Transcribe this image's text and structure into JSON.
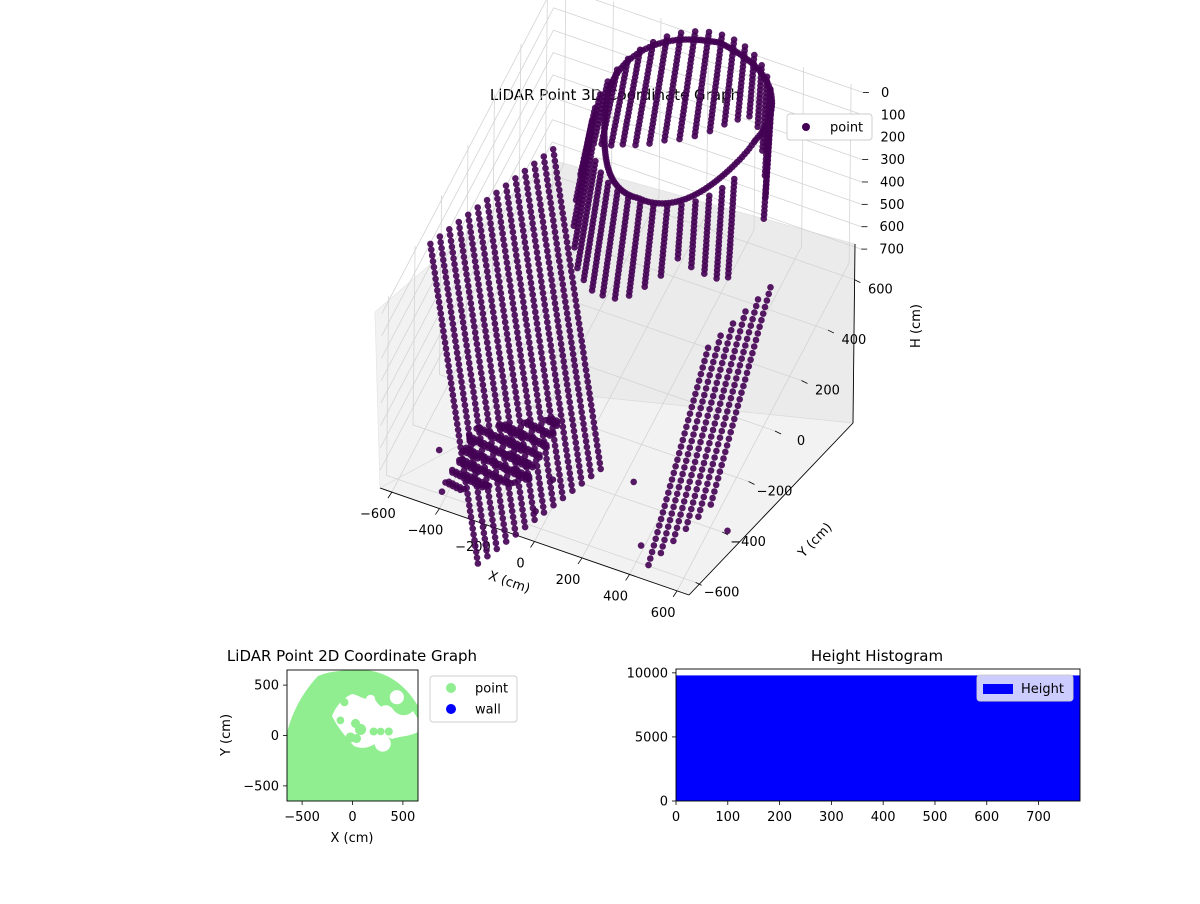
{
  "chart_data": [
    {
      "type": "scatter3d",
      "title": "LiDAR Point 3D Coordinate Graph",
      "xlabel": "X (cm)",
      "ylabel": "Y (cm)",
      "zlabel": "H (cm)",
      "xticks": [
        -600,
        -400,
        -200,
        0,
        200,
        400,
        600
      ],
      "yticks": [
        -600,
        -400,
        -200,
        0,
        200,
        400,
        600
      ],
      "zticks": [
        0,
        100,
        200,
        300,
        400,
        500,
        600,
        700
      ],
      "xlim": [
        -650,
        650
      ],
      "ylim": [
        -650,
        650
      ],
      "zlim": [
        -20,
        780
      ],
      "z_inverted": true,
      "legend": [
        "point"
      ],
      "legend_position": "top-right",
      "grid": true,
      "colors": {
        "point": "#440154"
      },
      "series": [
        {
          "name": "point",
          "description_points": [
            [
              -620,
              -150,
              200
            ],
            [
              -620,
              -150,
              700
            ],
            [
              -550,
              -350,
              150
            ],
            [
              -550,
              -350,
              700
            ],
            [
              -450,
              -500,
              100
            ],
            [
              -450,
              -500,
              650
            ],
            [
              -300,
              -600,
              200
            ],
            [
              -300,
              -600,
              700
            ],
            [
              -100,
              -620,
              250
            ],
            [
              -100,
              -620,
              720
            ],
            [
              100,
              -600,
              300
            ],
            [
              300,
              -500,
              350
            ],
            [
              450,
              -350,
              400
            ],
            [
              550,
              -150,
              300
            ],
            [
              600,
              0,
              250
            ],
            [
              600,
              200,
              200
            ],
            [
              500,
              400,
              150
            ],
            [
              300,
              550,
              50
            ],
            [
              100,
              600,
              30
            ],
            [
              -100,
              600,
              20
            ],
            [
              -300,
              550,
              30
            ],
            [
              -450,
              450,
              60
            ],
            [
              -550,
              300,
              100
            ],
            [
              -600,
              100,
              150
            ],
            [
              250,
              -350,
              760
            ],
            [
              700,
              -450,
              700
            ],
            [
              420,
              -600,
              700
            ]
          ]
        }
      ]
    },
    {
      "type": "scatter",
      "title": "LiDAR Point 2D Coordinate Graph",
      "xlabel": "X (cm)",
      "ylabel": "Y (cm)",
      "xticks": [
        -500,
        0,
        500
      ],
      "yticks": [
        -500,
        0,
        500
      ],
      "xlim": [
        -650,
        650
      ],
      "ylim": [
        -650,
        650
      ],
      "legend": [
        "point",
        "wall"
      ],
      "legend_position": "outside-right",
      "colors": {
        "point": "#90ee90",
        "wall": "#0000ff"
      }
    },
    {
      "type": "bar",
      "title": "Height Histogram",
      "legend": [
        "Height"
      ],
      "legend_position": "upper right",
      "xticks": [
        0,
        100,
        200,
        300,
        400,
        500,
        600,
        700
      ],
      "yticks": [
        0,
        5000,
        10000
      ],
      "xlim": [
        0,
        780
      ],
      "ylim": [
        0,
        10300
      ],
      "values": [
        {
          "from": 0,
          "to": 780,
          "count": 9800
        }
      ],
      "colors": {
        "Height": "#0000ff"
      }
    }
  ]
}
